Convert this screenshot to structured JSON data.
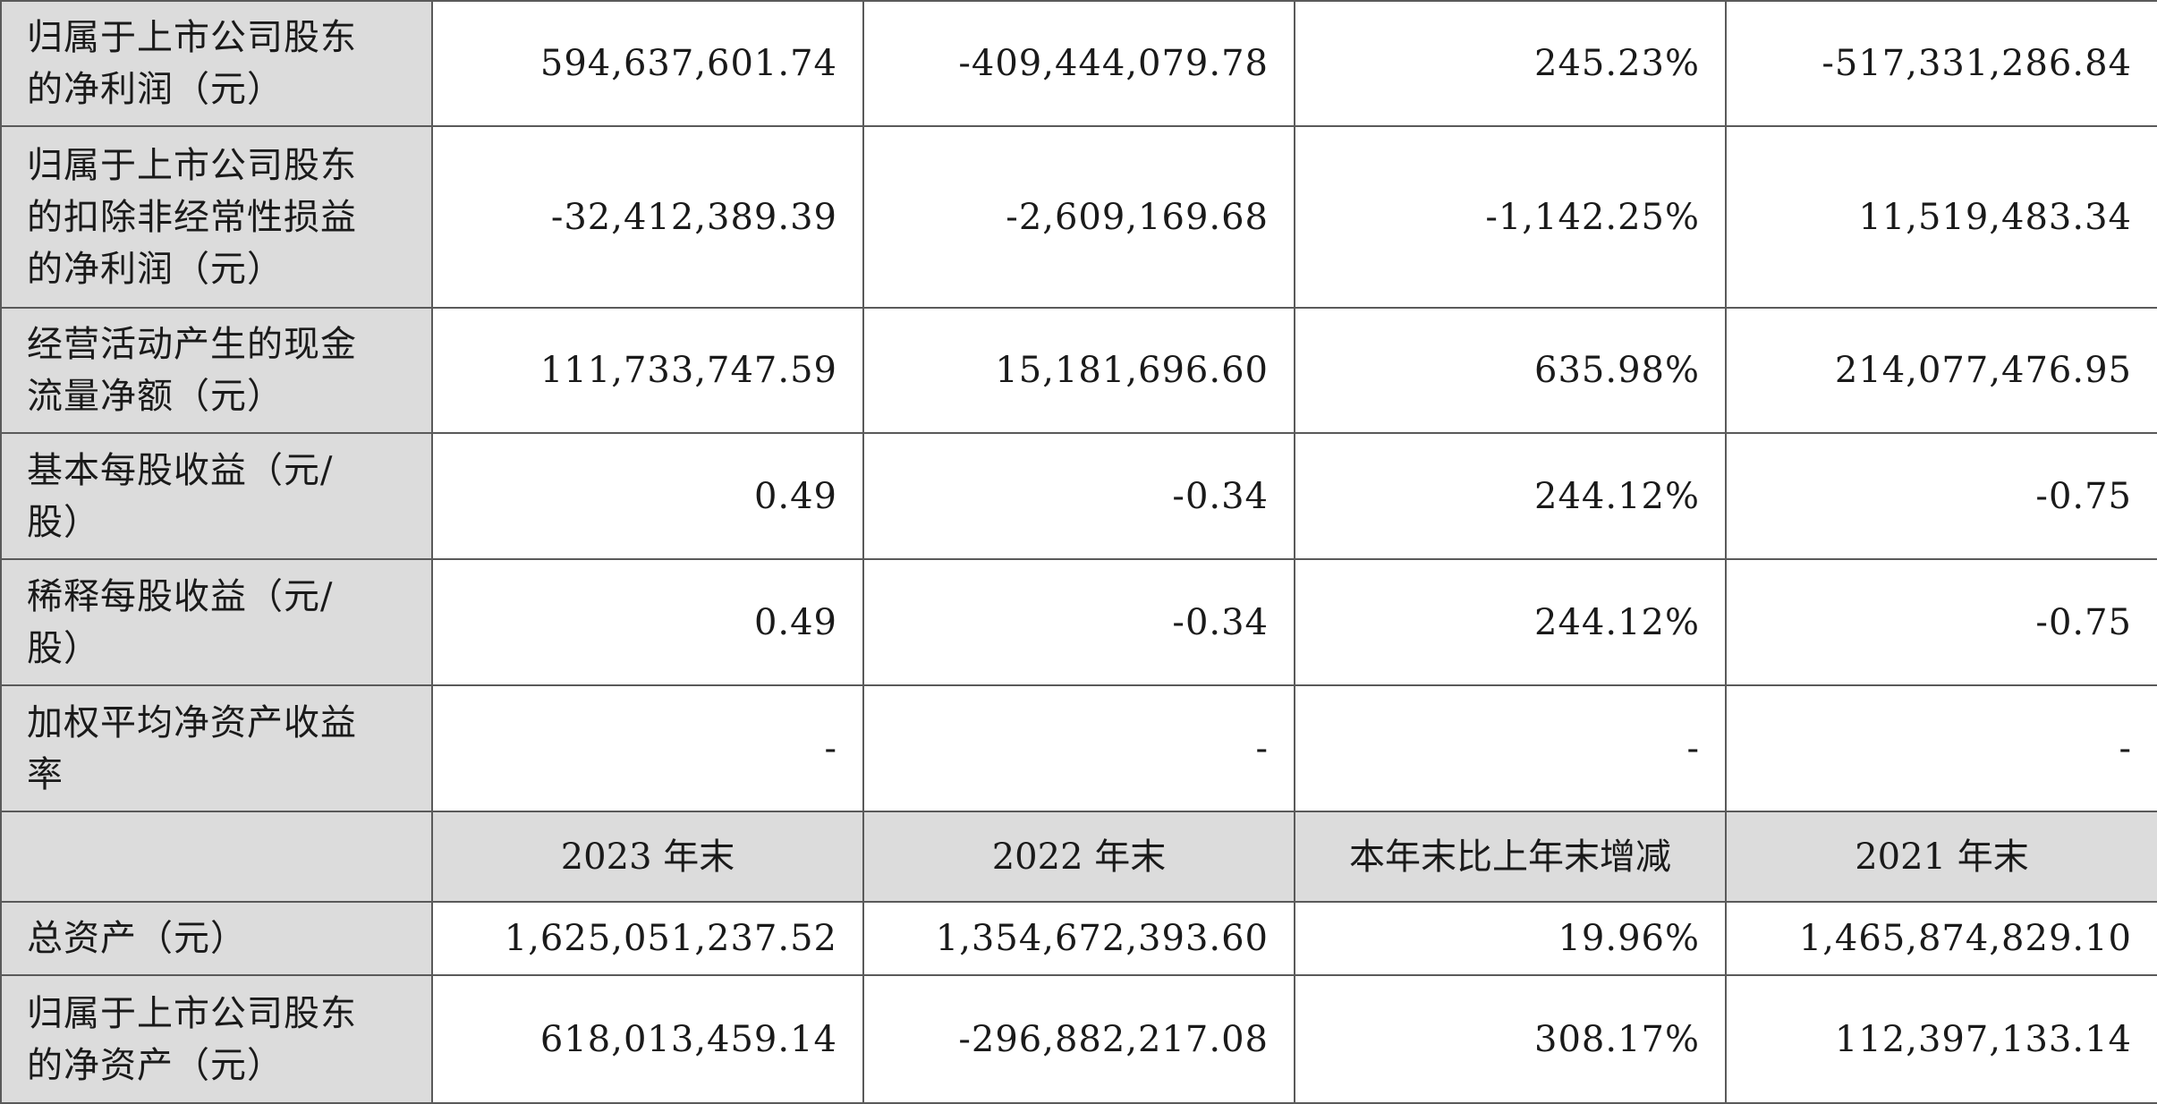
{
  "table": {
    "rows_top": [
      {
        "label": "归属于上市公司股东\n的净利润（元）",
        "values": [
          "594,637,601.74",
          "-409,444,079.78",
          "245.23%",
          "-517,331,286.84"
        ]
      },
      {
        "label": "归属于上市公司股东\n的扣除非经常性损益\n的净利润（元）",
        "values": [
          "-32,412,389.39",
          "-2,609,169.68",
          "-1,142.25%",
          "11,519,483.34"
        ]
      },
      {
        "label": "经营活动产生的现金\n流量净额（元）",
        "values": [
          "111,733,747.59",
          "15,181,696.60",
          "635.98%",
          "214,077,476.95"
        ]
      },
      {
        "label": "基本每股收益（元/\n股）",
        "values": [
          "0.49",
          "-0.34",
          "244.12%",
          "-0.75"
        ]
      },
      {
        "label": "稀释每股收益（元/\n股）",
        "values": [
          "0.49",
          "-0.34",
          "244.12%",
          "-0.75"
        ]
      },
      {
        "label": "加权平均净资产收益\n率",
        "values": [
          "-",
          "-",
          "-",
          "-"
        ]
      }
    ],
    "header": {
      "label": "",
      "columns": [
        "2023 年末",
        "2022 年末",
        "本年末比上年末增减",
        "2021 年末"
      ]
    },
    "rows_bottom": [
      {
        "label": "总资产（元）",
        "values": [
          "1,625,051,237.52",
          "1,354,672,393.60",
          "19.96%",
          "1,465,874,829.10"
        ]
      },
      {
        "label": "归属于上市公司股东\n的净资产（元）",
        "values": [
          "618,013,459.14",
          "-296,882,217.08",
          "308.17%",
          "112,397,133.14"
        ]
      }
    ]
  }
}
